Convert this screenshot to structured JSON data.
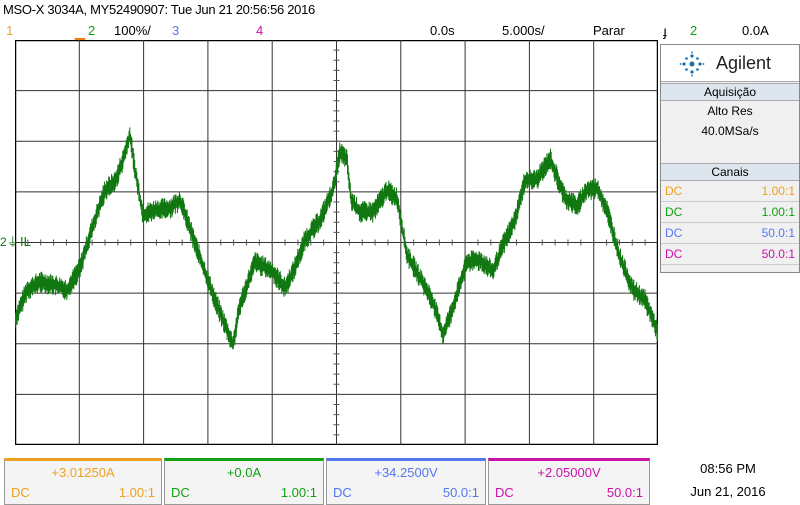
{
  "header": {
    "title": "MSO-X 3034A, MY52490907: Tue Jun 21 20:56:56 2016",
    "ch1": "1",
    "ch2": "2",
    "ch2_scale": "100%/",
    "ch3": "3",
    "ch4": "4",
    "time_offset": "0.0s",
    "time_scale": "5.000s/",
    "run_state": "Parar",
    "trig_channel": "2",
    "trig_level": "0.0A"
  },
  "side_panel": {
    "brand": "Agilent",
    "acq_title": "Aquisição",
    "acq_mode": "Alto Res",
    "acq_rate": "40.0MSa/s",
    "channels_title": "Canais",
    "channels": [
      {
        "coupling": "DC",
        "probe": "1.00:1",
        "color": "#f0a020"
      },
      {
        "coupling": "DC",
        "probe": "1.00:1",
        "color": "#11a011"
      },
      {
        "coupling": "DC",
        "probe": "50.0:1",
        "color": "#5577ee"
      },
      {
        "coupling": "DC",
        "probe": "50.0:1",
        "color": "#cc11aa"
      }
    ]
  },
  "trace": {
    "marker": "2",
    "label": "IL",
    "color": "#117711"
  },
  "bottom": [
    {
      "value": "+3.01250A",
      "coupling": "DC",
      "probe": "1.00:1"
    },
    {
      "value": "+0.0A",
      "coupling": "DC",
      "probe": "1.00:1"
    },
    {
      "value": "+34.2500V",
      "coupling": "DC",
      "probe": "50.0:1"
    },
    {
      "value": "+2.05000V",
      "coupling": "DC",
      "probe": "50.0:1"
    }
  ],
  "clock": {
    "time": "08:56 PM",
    "date": "Jun 21, 2016"
  }
}
